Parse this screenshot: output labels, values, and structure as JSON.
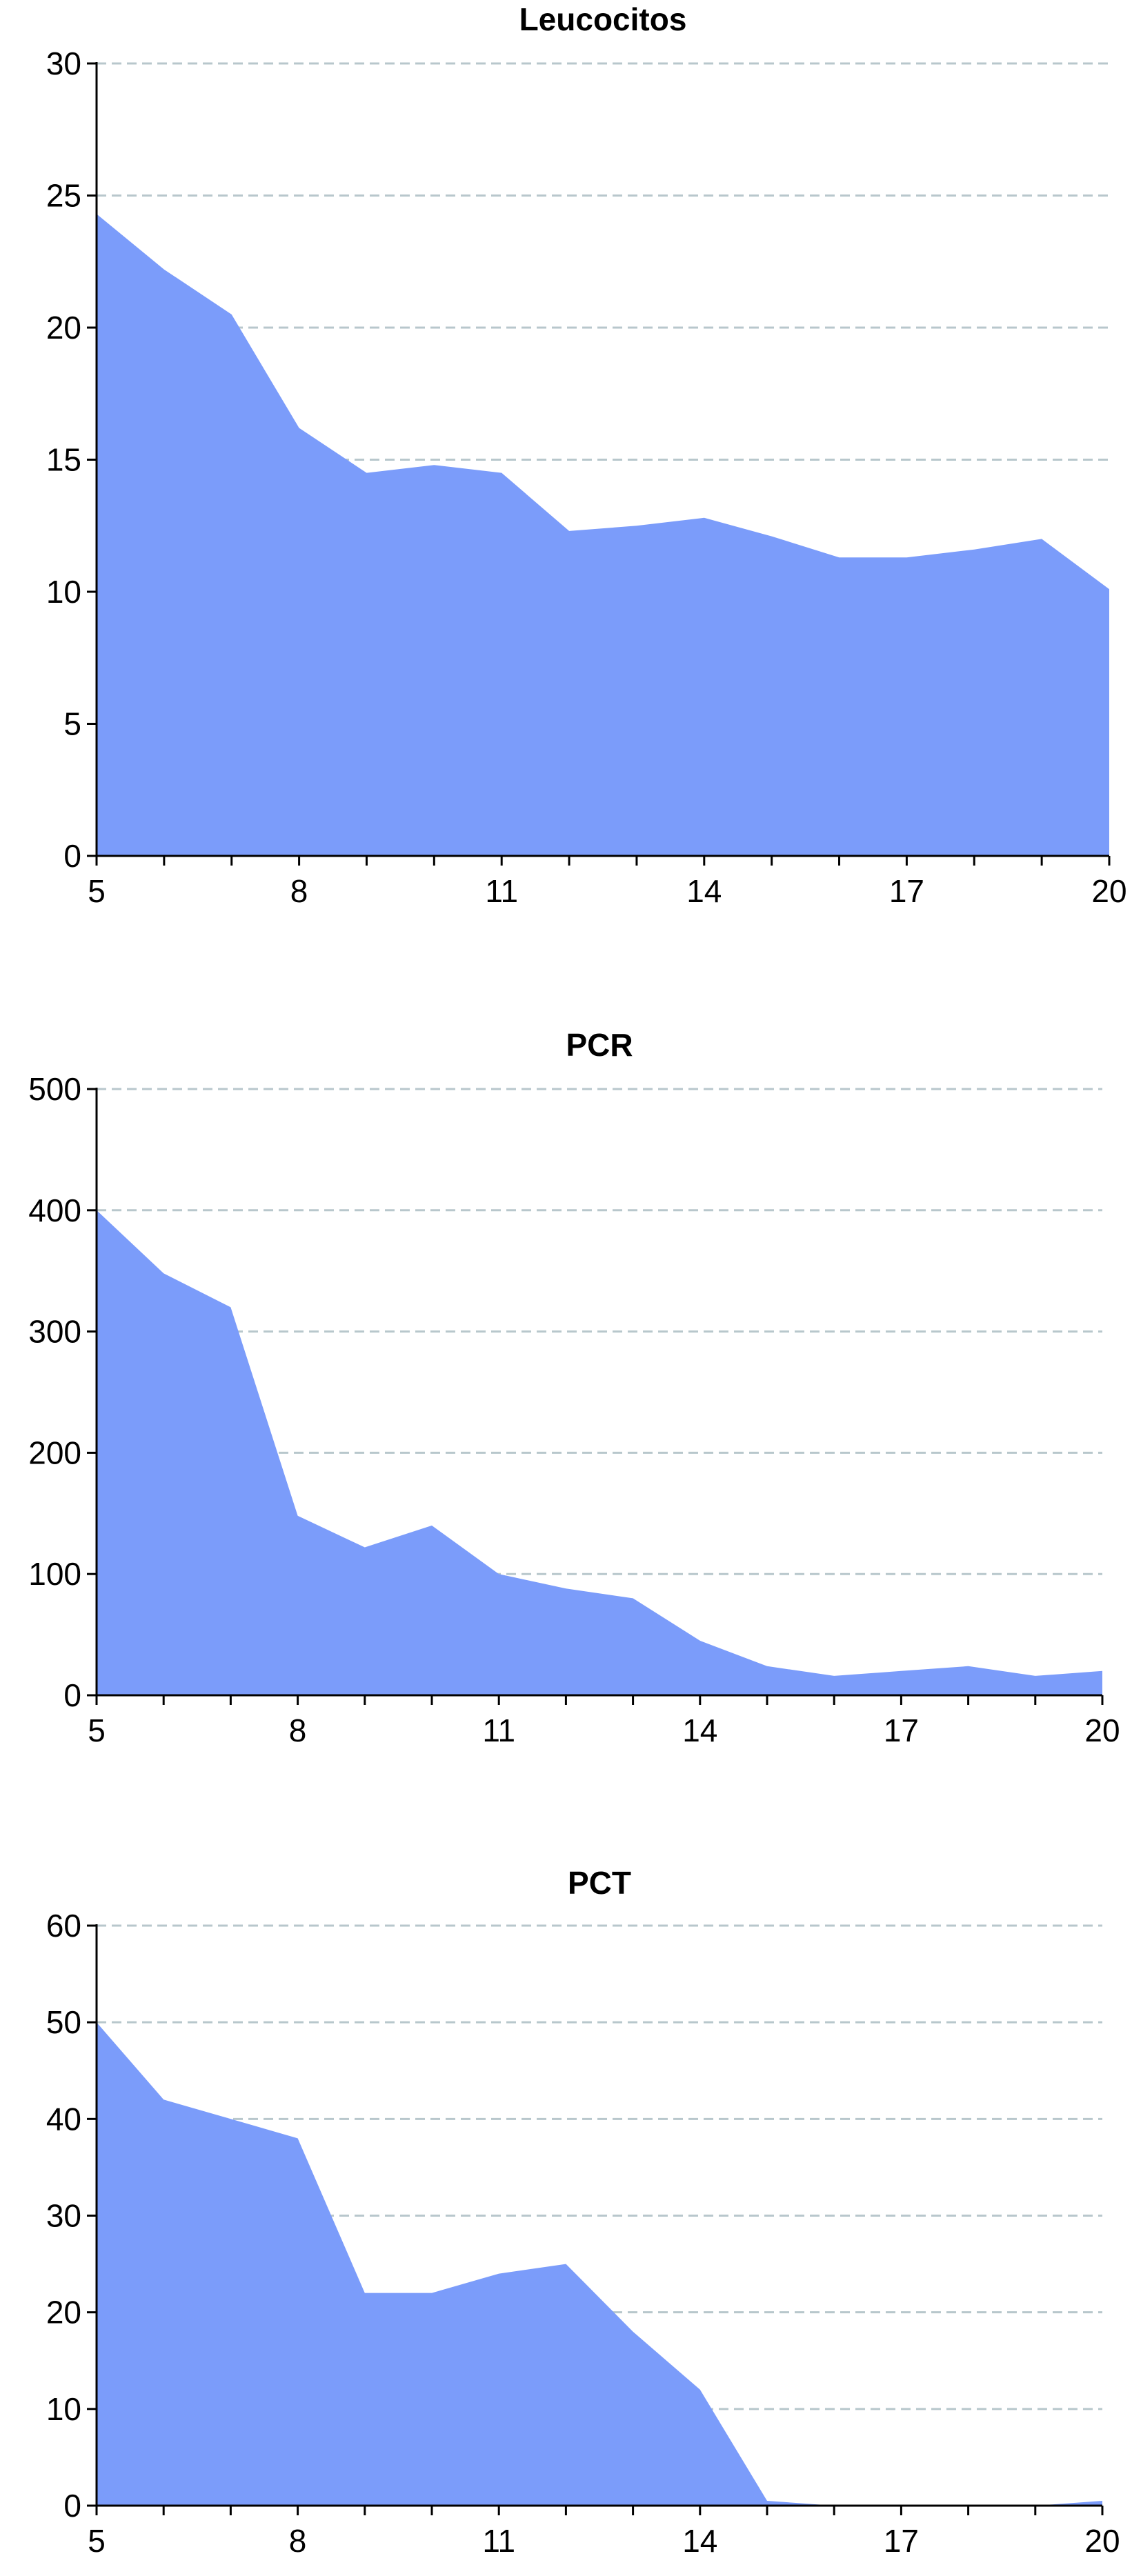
{
  "chart_data": [
    {
      "type": "area",
      "title": "Leucocitos",
      "x": [
        5,
        6,
        7,
        8,
        9,
        10,
        11,
        12,
        13,
        14,
        15,
        16,
        17,
        18,
        19,
        20
      ],
      "values": [
        24.3,
        22.2,
        20.5,
        16.2,
        14.5,
        14.8,
        14.5,
        12.3,
        12.5,
        12.8,
        12.1,
        11.3,
        11.3,
        11.6,
        12.0,
        10.1
      ],
      "xlim": [
        5,
        20
      ],
      "ylim": [
        0,
        30
      ],
      "x_ticks": [
        5,
        8,
        11,
        14,
        17,
        20
      ],
      "y_ticks": [
        0,
        5,
        10,
        15,
        20,
        25,
        30
      ],
      "grid": "horizontal dashed",
      "fill_color": "#7b9cfa"
    },
    {
      "type": "area",
      "title": "PCR",
      "x": [
        5,
        6,
        7,
        8,
        9,
        10,
        11,
        12,
        13,
        14,
        15,
        16,
        17,
        18,
        19,
        20
      ],
      "values": [
        400,
        348,
        320,
        148,
        122,
        140,
        100,
        88,
        80,
        45,
        24,
        16,
        20,
        24,
        16,
        20
      ],
      "xlim": [
        5,
        20
      ],
      "ylim": [
        0,
        500
      ],
      "x_ticks": [
        5,
        8,
        11,
        14,
        17,
        20
      ],
      "y_ticks": [
        0,
        100,
        200,
        300,
        400,
        500
      ],
      "grid": "horizontal dashed",
      "fill_color": "#7b9cfa"
    },
    {
      "type": "area",
      "title": "PCT",
      "x": [
        5,
        6,
        7,
        8,
        9,
        10,
        11,
        12,
        13,
        14,
        15,
        16,
        17,
        18,
        19,
        20
      ],
      "values": [
        50,
        42,
        40,
        38,
        22,
        22,
        24,
        25,
        18,
        12,
        0.5,
        0,
        0,
        0,
        0,
        0.5
      ],
      "xlim": [
        5,
        20
      ],
      "ylim": [
        0,
        60
      ],
      "x_ticks": [
        5,
        8,
        11,
        14,
        17,
        20
      ],
      "y_ticks": [
        0,
        10,
        20,
        30,
        40,
        50,
        60
      ],
      "grid": "horizontal dashed",
      "fill_color": "#7b9cfa"
    }
  ]
}
